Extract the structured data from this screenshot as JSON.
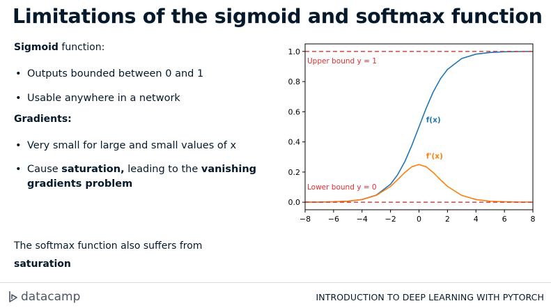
{
  "slide": {
    "title": "Limitations of the sigmoid and softmax function",
    "sigmoid_heading_bold": "Sigmoid",
    "sigmoid_heading_rest": " function:",
    "sigmoid_bullets": [
      "Outputs bounded between 0 and 1",
      "Usable anywhere in a network"
    ],
    "gradients_heading": "Gradients:",
    "gradient_bullet1": "Very small for large and small values of x",
    "gradient_bullet2": {
      "part1": "Cause ",
      "bold1": "saturation,",
      "part2": " leading to the ",
      "bold2": "vanishing",
      "bold3": "gradients problem"
    },
    "softmax_line1": "The softmax function also suffers from",
    "softmax_line2_bold": "saturation"
  },
  "footer": {
    "logo_text": "datacamp",
    "course_title": "INTRODUCTION TO DEEP LEARNING WITH PYTORCH"
  },
  "chart_data": {
    "type": "line",
    "x": [
      -8,
      -7,
      -6,
      -5,
      -4,
      -3,
      -2,
      -1.5,
      -1,
      -0.5,
      0,
      0.5,
      1,
      1.5,
      2,
      3,
      4,
      5,
      6,
      7,
      8
    ],
    "series": [
      {
        "name": "f(x)",
        "color": "#1f77b4",
        "values": [
          0.0003,
          0.0009,
          0.0025,
          0.0067,
          0.018,
          0.047,
          0.119,
          0.182,
          0.269,
          0.378,
          0.5,
          0.622,
          0.731,
          0.818,
          0.881,
          0.953,
          0.982,
          0.993,
          0.998,
          0.999,
          1.0
        ]
      },
      {
        "name": "f'(x)",
        "color": "#ff7f0e",
        "values": [
          0.0003,
          0.0009,
          0.0025,
          0.0066,
          0.018,
          0.045,
          0.105,
          0.149,
          0.197,
          0.235,
          0.25,
          0.235,
          0.197,
          0.149,
          0.105,
          0.045,
          0.018,
          0.0066,
          0.0025,
          0.0009,
          0.0003
        ]
      }
    ],
    "hlines": [
      {
        "y": 1.0,
        "label": "Upper bound y = 1",
        "color": "#e03030"
      },
      {
        "y": 0.0,
        "label": "Lower bound y = 0",
        "color": "#e03030"
      }
    ],
    "xlim": [
      -8,
      8
    ],
    "ylim": [
      -0.05,
      1.05
    ],
    "xticks": [
      "−8",
      "−6",
      "−4",
      "−2",
      "0",
      "2",
      "4",
      "6",
      "8"
    ],
    "yticks": [
      "0.0",
      "0.2",
      "0.4",
      "0.6",
      "0.8",
      "1.0"
    ],
    "grid": false
  }
}
